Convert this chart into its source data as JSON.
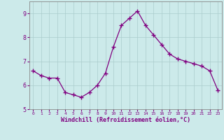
{
  "x": [
    0,
    1,
    2,
    3,
    4,
    5,
    6,
    7,
    8,
    9,
    10,
    11,
    12,
    13,
    14,
    15,
    16,
    17,
    18,
    19,
    20,
    21,
    22,
    23
  ],
  "y": [
    6.6,
    6.4,
    6.3,
    6.3,
    5.7,
    5.6,
    5.5,
    5.7,
    6.0,
    6.5,
    7.6,
    8.5,
    8.8,
    9.1,
    8.5,
    8.1,
    7.7,
    7.3,
    7.1,
    7.0,
    6.9,
    6.8,
    6.6,
    5.8
  ],
  "line_color": "#800080",
  "marker": "+",
  "marker_size": 4,
  "bg_color": "#cceaea",
  "grid_color": "#aacccc",
  "xlabel": "Windchill (Refroidissement éolien,°C)",
  "xlabel_color": "#800080",
  "tick_color": "#800080",
  "ylim": [
    5.0,
    9.5
  ],
  "yticks": [
    5,
    6,
    7,
    8,
    9
  ],
  "xlim": [
    -0.5,
    23.5
  ],
  "spine_color": "#888888"
}
